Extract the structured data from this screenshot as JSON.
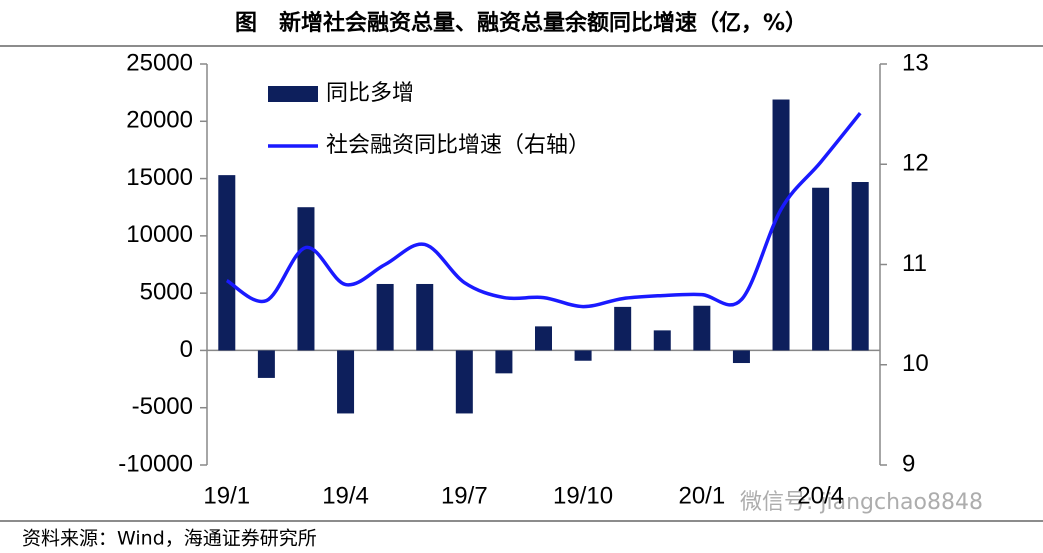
{
  "chart_data": {
    "type": "bar_line",
    "title": "图　新增社会融资总量、融资总量余额同比增速（亿，%）",
    "source": "资料来源：Wind，海通证券研究所",
    "watermark": "微信号: jiangchao8848",
    "categories": [
      "19/1",
      null,
      null,
      "19/4",
      null,
      null,
      "19/7",
      null,
      null,
      "19/10",
      null,
      null,
      "20/1",
      null,
      null,
      "20/4",
      null
    ],
    "series": [
      {
        "name": "同比多增",
        "type": "bar",
        "color": "#0d1f5c",
        "axis": "y",
        "values": [
          15300,
          -2400,
          12500,
          -5500,
          5800,
          5800,
          -5500,
          -2000,
          2100,
          -900,
          3800,
          1750,
          3900,
          -1100,
          21900,
          14200,
          14700
        ]
      },
      {
        "name": "社会融资同比增速（右轴）",
        "type": "line",
        "color": "#1a1aff",
        "axis": "y2",
        "values": [
          10.84,
          10.64,
          11.17,
          10.8,
          11.0,
          11.2,
          10.82,
          10.67,
          10.67,
          10.58,
          10.66,
          10.69,
          10.7,
          10.65,
          11.55,
          12.02,
          12.51
        ]
      }
    ],
    "ylim": [
      -10000,
      25000
    ],
    "yticks": [
      -10000,
      -5000,
      0,
      5000,
      10000,
      15000,
      20000,
      25000
    ],
    "y2lim": [
      9,
      13
    ],
    "y2ticks": [
      9,
      10,
      11,
      12,
      13
    ],
    "legend": "top-left"
  }
}
